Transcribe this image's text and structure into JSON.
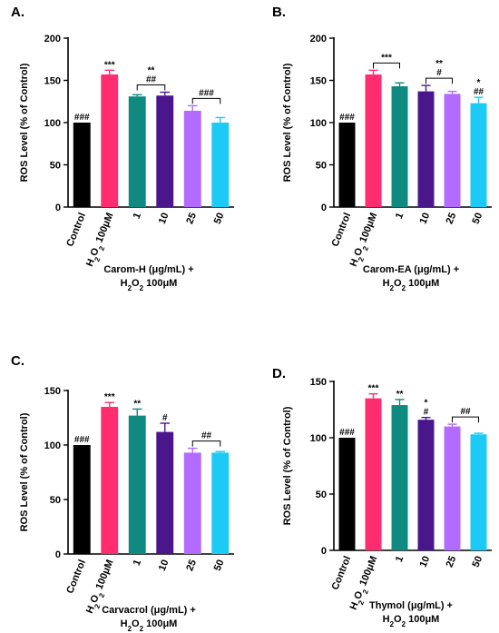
{
  "chart_data": [
    {
      "type": "bar",
      "panel_label": "A.",
      "ylabel": "ROS Level (% of Control)",
      "ylim": [
        0,
        200
      ],
      "yticks": [
        0,
        50,
        100,
        150,
        200
      ],
      "categories": [
        "Control",
        "H₂O₂ 100μM",
        "1",
        "10",
        "25",
        "50"
      ],
      "values": [
        100,
        157,
        131,
        132,
        114,
        100
      ],
      "errors": [
        0,
        5,
        2,
        4,
        6,
        6
      ],
      "colors": [
        "#000000",
        "#ff2d6f",
        "#0f8a80",
        "#4a168c",
        "#b36bff",
        "#1ccbf5"
      ],
      "bar_labels": [
        "###",
        "***",
        "",
        "",
        "",
        ""
      ],
      "xlabel_line1": "Carom-H (μg/mL) +",
      "xlabel_line2": "H₂O₂ 100μM",
      "brackets": [
        {
          "from": 2,
          "to": 3,
          "labels": [
            "**",
            "##"
          ]
        },
        {
          "from": 4,
          "to": 5,
          "labels": [
            "###"
          ]
        }
      ]
    },
    {
      "type": "bar",
      "panel_label": "B.",
      "ylabel": "ROS Level (% of Control)",
      "ylim": [
        0,
        200
      ],
      "yticks": [
        0,
        50,
        100,
        150,
        200
      ],
      "categories": [
        "Control",
        "H₂O₂ 100μM",
        "1",
        "10",
        "25",
        "50"
      ],
      "values": [
        100,
        157,
        143,
        137,
        134,
        123
      ],
      "errors": [
        0,
        5,
        4,
        7,
        3,
        7
      ],
      "colors": [
        "#000000",
        "#ff2d6f",
        "#0f8a80",
        "#4a168c",
        "#b36bff",
        "#1ccbf5"
      ],
      "bar_labels": [
        "###",
        "",
        "",
        "",
        "",
        "*|##"
      ],
      "xlabel_line1": "Carom-EA (μg/mL) +",
      "xlabel_line2": "H₂O₂ 100μM",
      "brackets": [
        {
          "from": 1,
          "to": 2,
          "labels": [
            "***"
          ]
        },
        {
          "from": 3,
          "to": 4,
          "labels": [
            "**",
            "#"
          ]
        }
      ]
    },
    {
      "type": "bar",
      "panel_label": "C.",
      "ylabel": "ROS Level (% of Control)",
      "ylim": [
        0,
        150
      ],
      "yticks": [
        0,
        50,
        100,
        150
      ],
      "categories": [
        "Control",
        "H₂O₂ 100μM",
        "1",
        "10",
        "25",
        "50"
      ],
      "values": [
        100,
        135,
        127,
        112,
        93,
        93
      ],
      "errors": [
        0,
        4,
        6,
        8,
        4,
        1
      ],
      "colors": [
        "#000000",
        "#ff2d6f",
        "#0f8a80",
        "#4a168c",
        "#b36bff",
        "#1ccbf5"
      ],
      "bar_labels": [
        "###",
        "***",
        "**",
        "#",
        "",
        ""
      ],
      "xlabel_line1": "Carvacrol (μg/mL) +",
      "xlabel_line2": "H₂O₂ 100μM",
      "brackets": [
        {
          "from": 4,
          "to": 5,
          "labels": [
            "##"
          ]
        }
      ]
    },
    {
      "type": "bar",
      "panel_label": "D.",
      "ylabel": "ROS Level (% of Control)",
      "ylim": [
        0,
        150
      ],
      "yticks": [
        0,
        50,
        100,
        150
      ],
      "categories": [
        "Control",
        "H₂O₂ 100μM",
        "1",
        "10",
        "25",
        "50"
      ],
      "values": [
        100,
        135,
        129,
        116,
        110,
        103
      ],
      "errors": [
        0,
        4,
        5,
        2,
        2,
        1
      ],
      "colors": [
        "#000000",
        "#ff2d6f",
        "#0f8a80",
        "#4a168c",
        "#b36bff",
        "#1ccbf5"
      ],
      "bar_labels": [
        "###",
        "***",
        "**",
        "*|#",
        "",
        ""
      ],
      "xlabel_line1": "Thymol (μg/mL) +",
      "xlabel_line2": "H₂O₂ 100μM",
      "brackets": [
        {
          "from": 4,
          "to": 5,
          "labels": [
            "##"
          ]
        }
      ]
    }
  ]
}
